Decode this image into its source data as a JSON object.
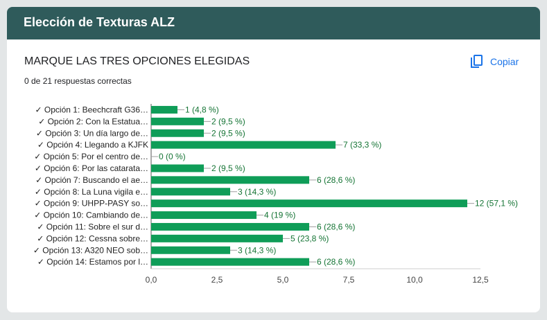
{
  "form": {
    "title": "Elección de Texturas ALZ"
  },
  "question": {
    "title": "MARQUE LAS TRES OPCIONES ELEGIDAS",
    "summary": "0 de 21 respuestas correctas",
    "copy_label": "Copiar"
  },
  "colors": {
    "header": "#2f5b5b",
    "bar": "#0f9d58",
    "axis": "#555555",
    "link": "#1a73e8"
  },
  "chart_data": {
    "type": "bar",
    "orientation": "horizontal",
    "categories": [
      "✓ Opción 1: Beechcraft G36…",
      "✓ Opción 2: Con la Estatua…",
      "✓ Opción 3: Un día largo de…",
      "✓ Opción 4: Llegando a KJFK",
      "✓ Opción 5: Por el centro de…",
      "✓ Opción 6: Por las catarata…",
      "✓ Opción 7: Buscando el ae…",
      "✓ Opción 8: La Luna vigila e…",
      "✓ Opción 9: UHPP-PASY so…",
      "✓ Opción 10: Cambiando de…",
      "✓ Opción 11: Sobre el sur d…",
      "✓ Opción 12: Cessna sobre…",
      "✓ Opción 13: A320 NEO sob…",
      "✓ Opción 14: Estamos por l…"
    ],
    "values": [
      1,
      2,
      2,
      7,
      0,
      2,
      6,
      3,
      12,
      4,
      6,
      5,
      3,
      6
    ],
    "value_labels": [
      "1 (4,8 %)",
      "2 (9,5 %)",
      "2 (9,5 %)",
      "7 (33,3 %)",
      "0 (0 %)",
      "2 (9,5 %)",
      "6 (28,6 %)",
      "3 (14,3 %)",
      "12 (57,1 %)",
      "4 (19 %)",
      "6 (28,6 %)",
      "5 (23,8 %)",
      "3 (14,3 %)",
      "6 (28,6 %)"
    ],
    "xticks": [
      0,
      2.5,
      5,
      7.5,
      10,
      12.5
    ],
    "xtick_labels": [
      "0,0",
      "2,5",
      "5,0",
      "7,5",
      "10,0",
      "12,5"
    ],
    "xlim": [
      0,
      12.5
    ],
    "grid": false,
    "legend": false
  }
}
